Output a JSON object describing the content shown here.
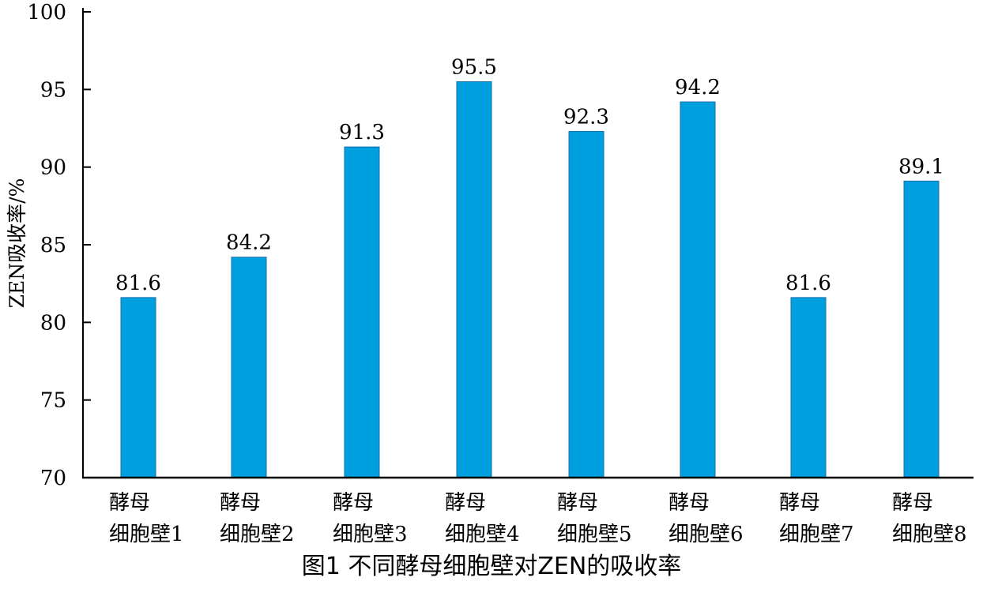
{
  "chart_data": {
    "type": "bar",
    "categories": [
      [
        "酵母",
        "细胞壁1"
      ],
      [
        "酵母",
        "细胞壁2"
      ],
      [
        "酵母",
        "细胞壁3"
      ],
      [
        "酵母",
        "细胞壁4"
      ],
      [
        "酵母",
        "细胞壁5"
      ],
      [
        "酵母",
        "细胞壁6"
      ],
      [
        "酵母",
        "细胞壁7"
      ],
      [
        "酵母",
        "细胞壁8"
      ]
    ],
    "values": [
      81.6,
      84.2,
      91.3,
      95.5,
      92.3,
      94.2,
      81.6,
      89.1
    ],
    "data_labels": [
      "81.6",
      "84.2",
      "91.3",
      "95.5",
      "92.3",
      "94.2",
      "81.6",
      "89.1"
    ],
    "ylabel": "ZEN吸收率/%",
    "xlabel": "",
    "ylim": [
      70,
      100
    ],
    "yticks": [
      70,
      75,
      80,
      85,
      90,
      95,
      100
    ],
    "grid": false,
    "bar_color": "#009fe0"
  },
  "caption": "图1  不同酵母细胞壁对ZEN的吸收率"
}
